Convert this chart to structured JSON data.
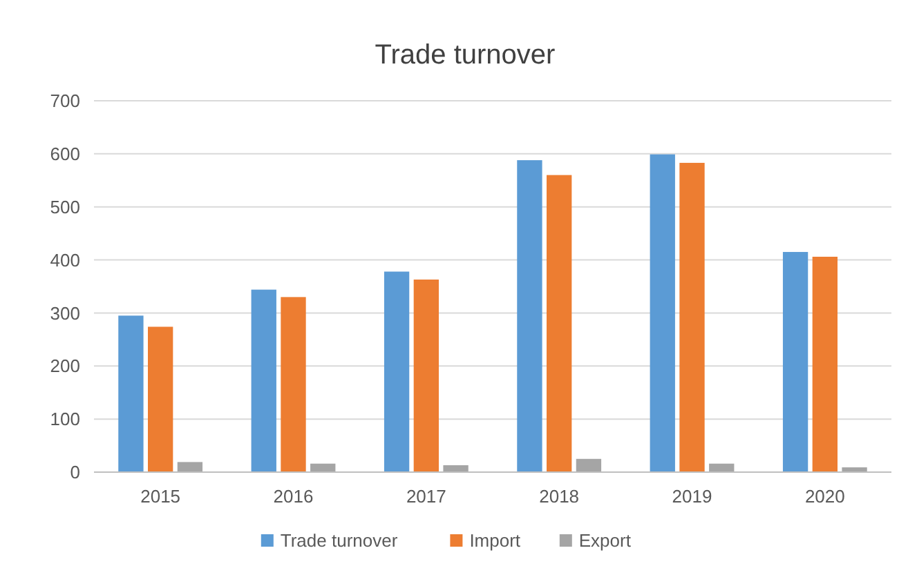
{
  "chart_data": {
    "type": "bar",
    "title": "Trade turnover",
    "categories": [
      "2015",
      "2016",
      "2017",
      "2018",
      "2019",
      "2020"
    ],
    "series": [
      {
        "name": "Trade turnover",
        "color": "#5b9bd5",
        "values": [
          295,
          344,
          378,
          588,
          599,
          415
        ]
      },
      {
        "name": "Import",
        "color": "#ed7d31",
        "values": [
          274,
          330,
          363,
          560,
          583,
          406
        ]
      },
      {
        "name": "Export",
        "color": "#a5a5a5",
        "values": [
          19,
          16,
          13,
          25,
          16,
          9
        ]
      }
    ],
    "ylim": [
      0,
      700
    ],
    "yticks": [
      0,
      100,
      200,
      300,
      400,
      500,
      600,
      700
    ],
    "grid": "y",
    "legend": "bottom"
  }
}
